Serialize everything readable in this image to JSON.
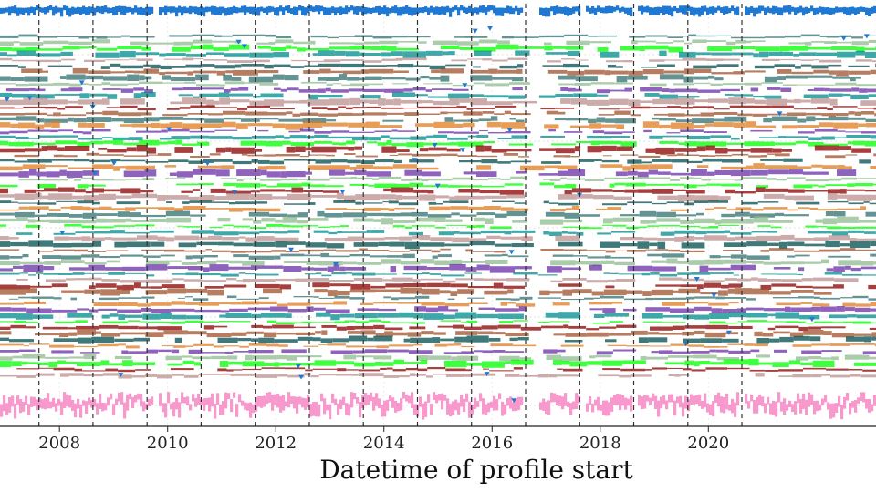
{
  "chart_data": {
    "type": "scatter",
    "title": "",
    "xlabel": "Datetime of profile start",
    "ylabel": "",
    "xlim": [
      2006.9,
      2023.1
    ],
    "x_ticks": [
      {
        "value": 2008,
        "label": "2008"
      },
      {
        "value": 2010,
        "label": "2010"
      },
      {
        "value": 2012,
        "label": "2012"
      },
      {
        "value": 2014,
        "label": "2014"
      },
      {
        "value": 2016,
        "label": "2016"
      },
      {
        "value": 2018,
        "label": "2018"
      },
      {
        "value": 2020,
        "label": "2020"
      }
    ],
    "grid": true,
    "vertical_markers": [
      2007.62,
      2008.62,
      2009.62,
      2010.62,
      2011.62,
      2012.62,
      2013.62,
      2014.62,
      2015.62,
      2016.62,
      2017.62,
      2018.62,
      2019.62,
      2020.62
    ],
    "data_gaps": [
      [
        2009.7,
        2009.8
      ],
      [
        2016.55,
        2016.85
      ],
      [
        2017.62,
        2017.7
      ],
      [
        2018.58,
        2018.68
      ],
      [
        2020.55,
        2020.62
      ]
    ],
    "top_band_color": "#1f78d1",
    "bottom_band_color": "#f78fc8",
    "band_palette": [
      "#2f6f6f",
      "#008b8b",
      "#a0522d",
      "#6a2ea8",
      "#8b0000",
      "#e07b20",
      "#00ff00",
      "#004d4d",
      "#8fbc8f",
      "#bc8f8f"
    ]
  }
}
